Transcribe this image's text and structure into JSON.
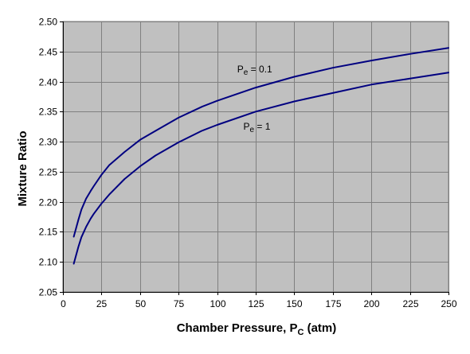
{
  "chart_data": {
    "type": "line",
    "title": "",
    "xlabel_main": "Chamber Pressure, P",
    "xlabel_sub": "C",
    "xlabel_tail": " (atm)",
    "ylabel": "Mixture Ratio",
    "xlim": [
      0,
      250
    ],
    "ylim": [
      2.05,
      2.5
    ],
    "x_ticks": [
      0,
      25,
      50,
      75,
      100,
      125,
      150,
      175,
      200,
      225,
      250
    ],
    "y_ticks": [
      2.05,
      2.1,
      2.15,
      2.2,
      2.25,
      2.3,
      2.35,
      2.4,
      2.45,
      2.5
    ],
    "x_tick_labels": [
      "0",
      "25",
      "50",
      "75",
      "100",
      "125",
      "150",
      "175",
      "200",
      "225",
      "250"
    ],
    "y_tick_labels": [
      "2.05",
      "2.10",
      "2.15",
      "2.20",
      "2.25",
      "2.30",
      "2.35",
      "2.40",
      "2.45",
      "2.50"
    ],
    "grid": true,
    "colors": {
      "plot_bg": "#c0c0c0",
      "grid": "#808080",
      "series": "#000080"
    },
    "series": [
      {
        "name_main": "P",
        "name_sub": "e",
        "name_tail": " = 0.1",
        "label_anchor": [
          113,
          2.415
        ],
        "x": [
          7,
          10,
          12,
          15,
          18,
          20,
          25,
          30,
          40,
          50,
          60,
          75,
          90,
          100,
          125,
          150,
          175,
          200,
          225,
          250
        ],
        "values": [
          2.142,
          2.17,
          2.187,
          2.205,
          2.218,
          2.226,
          2.245,
          2.261,
          2.283,
          2.303,
          2.318,
          2.34,
          2.358,
          2.368,
          2.39,
          2.408,
          2.423,
          2.435,
          2.446,
          2.456
        ]
      },
      {
        "name_main": "P",
        "name_sub": "e",
        "name_tail": " = 1",
        "label_anchor": [
          117,
          2.32
        ],
        "x": [
          7,
          10,
          12,
          15,
          18,
          20,
          25,
          30,
          40,
          50,
          60,
          75,
          90,
          100,
          125,
          150,
          175,
          200,
          225,
          250
        ],
        "values": [
          2.097,
          2.125,
          2.141,
          2.158,
          2.172,
          2.18,
          2.197,
          2.212,
          2.238,
          2.259,
          2.277,
          2.299,
          2.318,
          2.328,
          2.35,
          2.367,
          2.381,
          2.395,
          2.405,
          2.415
        ]
      }
    ]
  }
}
